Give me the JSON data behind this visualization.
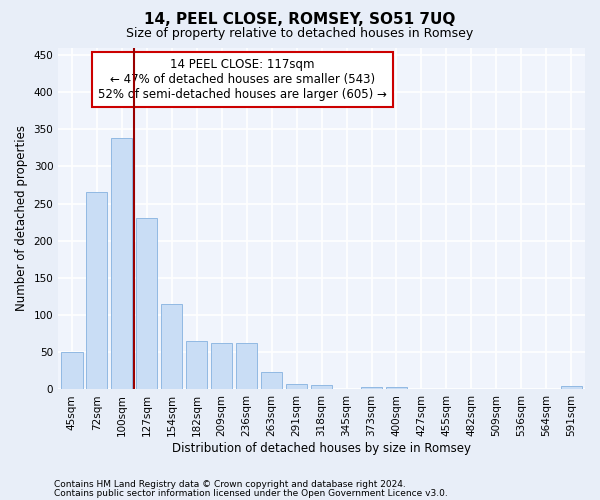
{
  "title": "14, PEEL CLOSE, ROMSEY, SO51 7UQ",
  "subtitle": "Size of property relative to detached houses in Romsey",
  "xlabel": "Distribution of detached houses by size in Romsey",
  "ylabel": "Number of detached properties",
  "categories": [
    "45sqm",
    "72sqm",
    "100sqm",
    "127sqm",
    "154sqm",
    "182sqm",
    "209sqm",
    "236sqm",
    "263sqm",
    "291sqm",
    "318sqm",
    "345sqm",
    "373sqm",
    "400sqm",
    "427sqm",
    "455sqm",
    "482sqm",
    "509sqm",
    "536sqm",
    "564sqm",
    "591sqm"
  ],
  "values": [
    50,
    265,
    338,
    230,
    115,
    65,
    62,
    62,
    23,
    7,
    6,
    0,
    3,
    3,
    0,
    0,
    0,
    0,
    0,
    0,
    4
  ],
  "bar_color": "#c9ddf5",
  "bar_edge_color": "#91b9e3",
  "vline_x": 2.5,
  "vline_color": "#990000",
  "annotation_text": "14 PEEL CLOSE: 117sqm\n← 47% of detached houses are smaller (543)\n52% of semi-detached houses are larger (605) →",
  "annotation_box_color": "#ffffff",
  "annotation_box_edge": "#cc0000",
  "footer1": "Contains HM Land Registry data © Crown copyright and database right 2024.",
  "footer2": "Contains public sector information licensed under the Open Government Licence v3.0.",
  "ylim": [
    0,
    460
  ],
  "yticks": [
    0,
    50,
    100,
    150,
    200,
    250,
    300,
    350,
    400,
    450
  ],
  "bg_color": "#e8eef8",
  "plot_bg_color": "#f0f4fc",
  "grid_color": "#ffffff",
  "title_fontsize": 11,
  "subtitle_fontsize": 9,
  "axis_label_fontsize": 8.5,
  "tick_fontsize": 7.5,
  "footer_fontsize": 6.5
}
